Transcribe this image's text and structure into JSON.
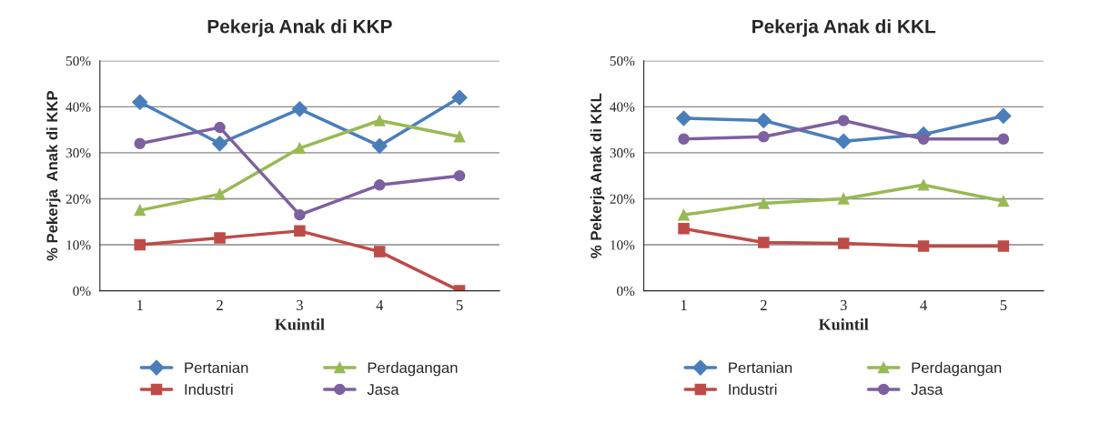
{
  "chart_data": [
    {
      "type": "line",
      "title": "Pekerja Anak di KKP",
      "xlabel": "Kuintil",
      "ylabel": "% Pekerja  Anak di KKP",
      "categories": [
        "1",
        "2",
        "3",
        "4",
        "5"
      ],
      "ylim": [
        0,
        50
      ],
      "yticks": [
        {
          "value": 0,
          "label": "0%"
        },
        {
          "value": 10,
          "label": "10%"
        },
        {
          "value": 20,
          "label": "20%"
        },
        {
          "value": 30,
          "label": "30%"
        },
        {
          "value": 40,
          "label": "40%"
        },
        {
          "value": 50,
          "label": "50%"
        }
      ],
      "grid": "y",
      "legend": "bottom",
      "series": [
        {
          "name": "Pertanian",
          "color": "#4a7ebb",
          "marker": "diamond",
          "values": [
            41,
            32,
            39.5,
            31.5,
            42
          ]
        },
        {
          "name": "Industri",
          "color": "#be4b48",
          "marker": "square",
          "values": [
            10,
            11.5,
            13,
            8.5,
            0
          ]
        },
        {
          "name": "Perdagangan",
          "color": "#98b954",
          "marker": "triangle",
          "values": [
            17.5,
            21,
            31,
            37,
            33.5
          ]
        },
        {
          "name": "Jasa",
          "color": "#7d60a0",
          "marker": "circle",
          "values": [
            32,
            35.5,
            16.5,
            23,
            25
          ]
        }
      ]
    },
    {
      "type": "line",
      "title": "Pekerja Anak di KKL",
      "xlabel": "Kuintil",
      "ylabel": "% Pekerja Anak di KKL",
      "categories": [
        "1",
        "2",
        "3",
        "4",
        "5"
      ],
      "ylim": [
        0,
        50
      ],
      "yticks": [
        {
          "value": 0,
          "label": "0%"
        },
        {
          "value": 10,
          "label": "10%"
        },
        {
          "value": 20,
          "label": "20%"
        },
        {
          "value": 30,
          "label": "30%"
        },
        {
          "value": 40,
          "label": "40%"
        },
        {
          "value": 50,
          "label": "50%"
        }
      ],
      "grid": "y",
      "legend": "bottom",
      "series": [
        {
          "name": "Pertanian",
          "color": "#4a7ebb",
          "marker": "diamond",
          "values": [
            37.5,
            37,
            32.5,
            34,
            38
          ]
        },
        {
          "name": "Industri",
          "color": "#be4b48",
          "marker": "square",
          "values": [
            13.5,
            10.5,
            10.3,
            9.7,
            9.7
          ]
        },
        {
          "name": "Perdagangan",
          "color": "#98b954",
          "marker": "triangle",
          "values": [
            16.5,
            19,
            20,
            23,
            19.5
          ]
        },
        {
          "name": "Jasa",
          "color": "#7d60a0",
          "marker": "circle",
          "values": [
            33,
            33.5,
            37,
            33,
            33
          ]
        }
      ]
    }
  ]
}
